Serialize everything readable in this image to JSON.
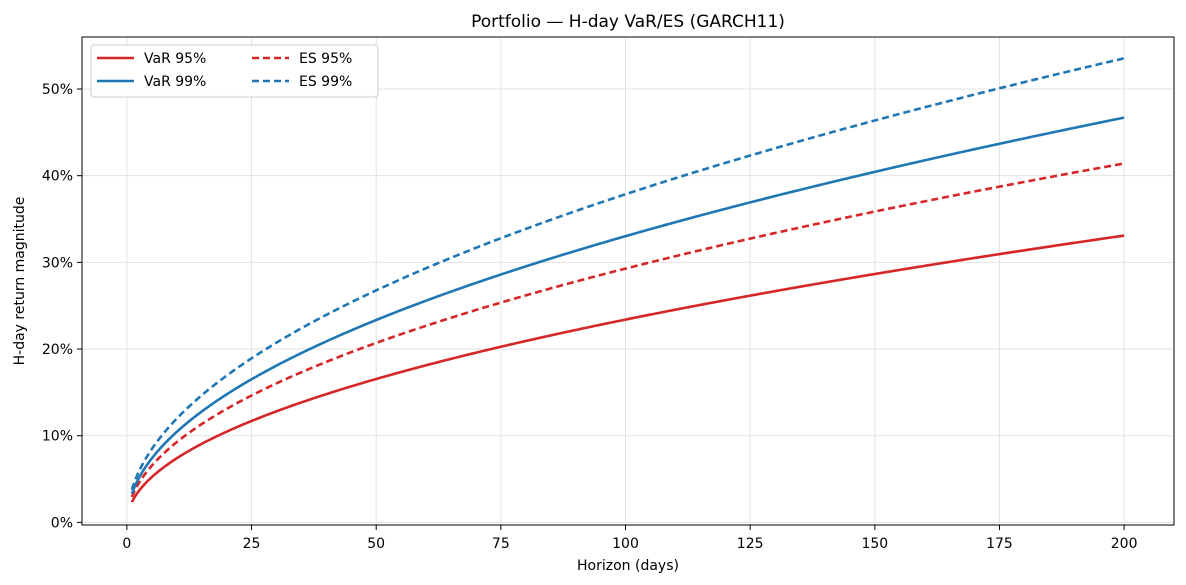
{
  "chart_data": {
    "type": "line",
    "title": "Portfolio — H-day VaR/ES (GARCH11)",
    "xlabel": "Horizon (days)",
    "ylabel": "H-day return magnitude",
    "xlim": [
      -9,
      210
    ],
    "ylim": [
      -0.003,
      0.56
    ],
    "x_ticks": [
      0,
      25,
      50,
      75,
      100,
      125,
      150,
      175,
      200
    ],
    "x_tick_labels": [
      "0",
      "25",
      "50",
      "75",
      "100",
      "125",
      "150",
      "175",
      "200"
    ],
    "y_ticks": [
      0,
      0.1,
      0.2,
      0.3,
      0.4,
      0.5
    ],
    "y_tick_labels": [
      "0%",
      "10%",
      "20%",
      "30%",
      "40%",
      "50%"
    ],
    "grid": true,
    "legend": {
      "placement": "top-left",
      "columns": 2
    },
    "x": [
      1,
      2,
      5,
      10,
      25,
      50,
      75,
      100,
      125,
      150,
      175,
      200
    ],
    "series": [
      {
        "name": "VaR 95%",
        "color": "#d62728",
        "dash": "solid",
        "values": [
          0.0234,
          0.0331,
          0.0523,
          0.074,
          0.117,
          0.1655,
          0.2026,
          0.234,
          0.2616,
          0.2866,
          0.3096,
          0.3309
        ]
      },
      {
        "name": "ES 95%",
        "color": "#d62728",
        "dash": "dashed",
        "values": [
          0.0293,
          0.0414,
          0.0655,
          0.0926,
          0.1464,
          0.2071,
          0.2536,
          0.2929,
          0.3274,
          0.3587,
          0.3874,
          0.4141
        ]
      },
      {
        "name": "VaR 99%",
        "color": "#1f77b4",
        "dash": "solid",
        "values": [
          0.033,
          0.0467,
          0.0738,
          0.1044,
          0.1651,
          0.2335,
          0.286,
          0.3302,
          0.3692,
          0.4044,
          0.4368,
          0.467
        ]
      },
      {
        "name": "ES 99%",
        "color": "#1f77b4",
        "dash": "dashed",
        "values": [
          0.0379,
          0.0535,
          0.0847,
          0.1197,
          0.1893,
          0.2677,
          0.3279,
          0.3786,
          0.4233,
          0.4637,
          0.5008,
          0.5354
        ]
      }
    ]
  }
}
